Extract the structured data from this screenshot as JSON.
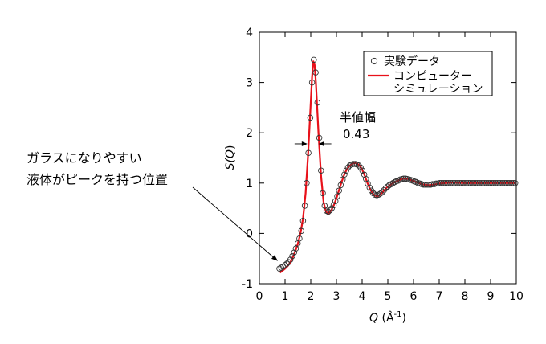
{
  "chart_data": {
    "type": "scatter",
    "xlabel": "Q (Å-1)",
    "xlabel_var": "Q",
    "xlabel_unit_open": " (Å",
    "xlabel_unit_sup": "-1",
    "xlabel_unit_close": ")",
    "ylabel": "S(Q)",
    "ylabel_s": "S(",
    "ylabel_q": "Q",
    "ylabel_close": ")",
    "xlim": [
      0,
      10
    ],
    "ylim": [
      -1,
      4
    ],
    "xticks": [
      0,
      1,
      2,
      3,
      4,
      5,
      6,
      7,
      8,
      9,
      10
    ],
    "yticks": [
      -1,
      0,
      1,
      2,
      3,
      4
    ],
    "grid": false,
    "legend_position": "top-right",
    "series": [
      {
        "name": "実験データ",
        "style": "open-circle",
        "color": "#333333",
        "points": [
          [
            0.78,
            -0.7
          ],
          [
            0.85,
            -0.68
          ],
          [
            0.92,
            -0.66
          ],
          [
            1.0,
            -0.63
          ],
          [
            1.07,
            -0.6
          ],
          [
            1.14,
            -0.57
          ],
          [
            1.21,
            -0.52
          ],
          [
            1.28,
            -0.45
          ],
          [
            1.35,
            -0.38
          ],
          [
            1.42,
            -0.3
          ],
          [
            1.49,
            -0.2
          ],
          [
            1.56,
            -0.1
          ],
          [
            1.63,
            0.05
          ],
          [
            1.7,
            0.25
          ],
          [
            1.77,
            0.55
          ],
          [
            1.84,
            1.0
          ],
          [
            1.91,
            1.6
          ],
          [
            1.98,
            2.3
          ],
          [
            2.05,
            3.0
          ],
          [
            2.12,
            3.45
          ],
          [
            2.19,
            3.2
          ],
          [
            2.26,
            2.6
          ],
          [
            2.33,
            1.9
          ],
          [
            2.4,
            1.25
          ],
          [
            2.47,
            0.8
          ],
          [
            2.54,
            0.55
          ],
          [
            2.61,
            0.45
          ],
          [
            2.68,
            0.43
          ],
          [
            2.75,
            0.46
          ],
          [
            2.82,
            0.5
          ],
          [
            2.89,
            0.56
          ],
          [
            2.96,
            0.64
          ],
          [
            3.03,
            0.74
          ],
          [
            3.1,
            0.85
          ],
          [
            3.17,
            0.96
          ],
          [
            3.24,
            1.07
          ],
          [
            3.31,
            1.17
          ],
          [
            3.38,
            1.25
          ],
          [
            3.45,
            1.31
          ],
          [
            3.52,
            1.35
          ],
          [
            3.59,
            1.37
          ],
          [
            3.66,
            1.38
          ],
          [
            3.73,
            1.38
          ],
          [
            3.8,
            1.37
          ],
          [
            3.87,
            1.35
          ],
          [
            3.94,
            1.31
          ],
          [
            4.01,
            1.25
          ],
          [
            4.08,
            1.17
          ],
          [
            4.15,
            1.08
          ],
          [
            4.22,
            0.99
          ],
          [
            4.29,
            0.91
          ],
          [
            4.36,
            0.85
          ],
          [
            4.43,
            0.8
          ],
          [
            4.5,
            0.77
          ],
          [
            4.57,
            0.76
          ],
          [
            4.64,
            0.77
          ],
          [
            4.71,
            0.79
          ],
          [
            4.78,
            0.82
          ],
          [
            4.85,
            0.86
          ],
          [
            4.92,
            0.9
          ],
          [
            4.99,
            0.93
          ],
          [
            5.06,
            0.96
          ],
          [
            5.13,
            0.98
          ],
          [
            5.2,
            1.0
          ],
          [
            5.27,
            1.02
          ],
          [
            5.34,
            1.04
          ],
          [
            5.41,
            1.05
          ],
          [
            5.48,
            1.07
          ],
          [
            5.55,
            1.08
          ],
          [
            5.62,
            1.09
          ],
          [
            5.69,
            1.09
          ],
          [
            5.76,
            1.08
          ],
          [
            5.83,
            1.07
          ],
          [
            5.9,
            1.06
          ],
          [
            5.97,
            1.05
          ],
          [
            6.04,
            1.03
          ],
          [
            6.11,
            1.02
          ],
          [
            6.18,
            1.0
          ],
          [
            6.25,
            0.99
          ],
          [
            6.32,
            0.98
          ],
          [
            6.39,
            0.97
          ],
          [
            6.46,
            0.97
          ],
          [
            6.53,
            0.97
          ],
          [
            6.6,
            0.97
          ],
          [
            6.67,
            0.97
          ],
          [
            6.74,
            0.98
          ],
          [
            6.81,
            0.98
          ],
          [
            6.88,
            0.99
          ],
          [
            6.95,
            0.99
          ],
          [
            7.02,
            1.0
          ],
          [
            7.09,
            1.0
          ],
          [
            7.16,
            1.0
          ],
          [
            7.23,
            1.0
          ],
          [
            7.3,
            1.0
          ],
          [
            7.37,
            1.0
          ],
          [
            7.44,
            1.0
          ],
          [
            7.51,
            1.0
          ],
          [
            7.58,
            1.0
          ],
          [
            7.65,
            1.0
          ],
          [
            7.72,
            1.0
          ],
          [
            7.79,
            1.0
          ],
          [
            7.86,
            1.0
          ],
          [
            7.93,
            1.0
          ],
          [
            8.0,
            1.0
          ],
          [
            8.07,
            1.0
          ],
          [
            8.14,
            1.0
          ],
          [
            8.21,
            1.0
          ],
          [
            8.28,
            1.0
          ],
          [
            8.35,
            1.0
          ],
          [
            8.42,
            1.0
          ],
          [
            8.49,
            1.0
          ],
          [
            8.56,
            1.0
          ],
          [
            8.63,
            1.0
          ],
          [
            8.7,
            1.0
          ],
          [
            8.77,
            1.0
          ],
          [
            8.84,
            1.0
          ],
          [
            8.91,
            1.0
          ],
          [
            8.98,
            1.0
          ],
          [
            9.05,
            1.0
          ],
          [
            9.12,
            1.0
          ],
          [
            9.19,
            1.0
          ],
          [
            9.26,
            1.0
          ],
          [
            9.33,
            1.0
          ],
          [
            9.4,
            1.0
          ],
          [
            9.47,
            1.0
          ],
          [
            9.54,
            1.0
          ],
          [
            9.61,
            1.0
          ],
          [
            9.68,
            1.0
          ],
          [
            9.75,
            1.0
          ],
          [
            9.82,
            1.0
          ],
          [
            9.89,
            1.0
          ],
          [
            9.96,
            1.0
          ]
        ]
      },
      {
        "name": "コンピューター\nシミュレーション",
        "name_line1": "コンピューター",
        "name_line2": "シミュレーション",
        "style": "line",
        "color": "#e8111a",
        "points": [
          [
            0.8,
            -0.78
          ],
          [
            0.9,
            -0.74
          ],
          [
            1.0,
            -0.7
          ],
          [
            1.1,
            -0.65
          ],
          [
            1.2,
            -0.58
          ],
          [
            1.3,
            -0.48
          ],
          [
            1.4,
            -0.35
          ],
          [
            1.5,
            -0.2
          ],
          [
            1.6,
            0.0
          ],
          [
            1.7,
            0.3
          ],
          [
            1.8,
            0.8
          ],
          [
            1.9,
            1.6
          ],
          [
            2.0,
            2.6
          ],
          [
            2.05,
            3.1
          ],
          [
            2.1,
            3.42
          ],
          [
            2.15,
            3.35
          ],
          [
            2.2,
            3.0
          ],
          [
            2.3,
            2.0
          ],
          [
            2.4,
            1.15
          ],
          [
            2.5,
            0.62
          ],
          [
            2.6,
            0.42
          ],
          [
            2.7,
            0.4
          ],
          [
            2.8,
            0.46
          ],
          [
            2.9,
            0.56
          ],
          [
            3.0,
            0.7
          ],
          [
            3.1,
            0.86
          ],
          [
            3.2,
            1.02
          ],
          [
            3.3,
            1.16
          ],
          [
            3.4,
            1.27
          ],
          [
            3.5,
            1.34
          ],
          [
            3.6,
            1.38
          ],
          [
            3.7,
            1.4
          ],
          [
            3.8,
            1.39
          ],
          [
            3.9,
            1.35
          ],
          [
            4.0,
            1.27
          ],
          [
            4.1,
            1.15
          ],
          [
            4.2,
            1.01
          ],
          [
            4.3,
            0.89
          ],
          [
            4.4,
            0.8
          ],
          [
            4.5,
            0.75
          ],
          [
            4.6,
            0.74
          ],
          [
            4.7,
            0.77
          ],
          [
            4.8,
            0.82
          ],
          [
            4.9,
            0.88
          ],
          [
            5.0,
            0.93
          ],
          [
            5.2,
            1.0
          ],
          [
            5.4,
            1.05
          ],
          [
            5.6,
            1.09
          ],
          [
            5.8,
            1.08
          ],
          [
            6.0,
            1.04
          ],
          [
            6.2,
            1.0
          ],
          [
            6.4,
            0.97
          ],
          [
            6.6,
            0.96
          ],
          [
            6.8,
            0.97
          ],
          [
            7.0,
            0.99
          ],
          [
            7.5,
            1.01
          ],
          [
            8.0,
            1.0
          ],
          [
            8.5,
            1.0
          ],
          [
            9.0,
            1.0
          ],
          [
            9.5,
            1.0
          ],
          [
            10.0,
            1.0
          ]
        ]
      }
    ],
    "annotations": {
      "fwhm_label": "半値幅",
      "fwhm_value": "0.43",
      "fwhm_range": [
        1.87,
        2.3
      ],
      "fwhm_level": 1.78,
      "note_line1": "ガラスになりやすい",
      "note_line2": "液体がピークを持つ位置",
      "note_target": [
        0.72,
        -0.55
      ]
    }
  }
}
